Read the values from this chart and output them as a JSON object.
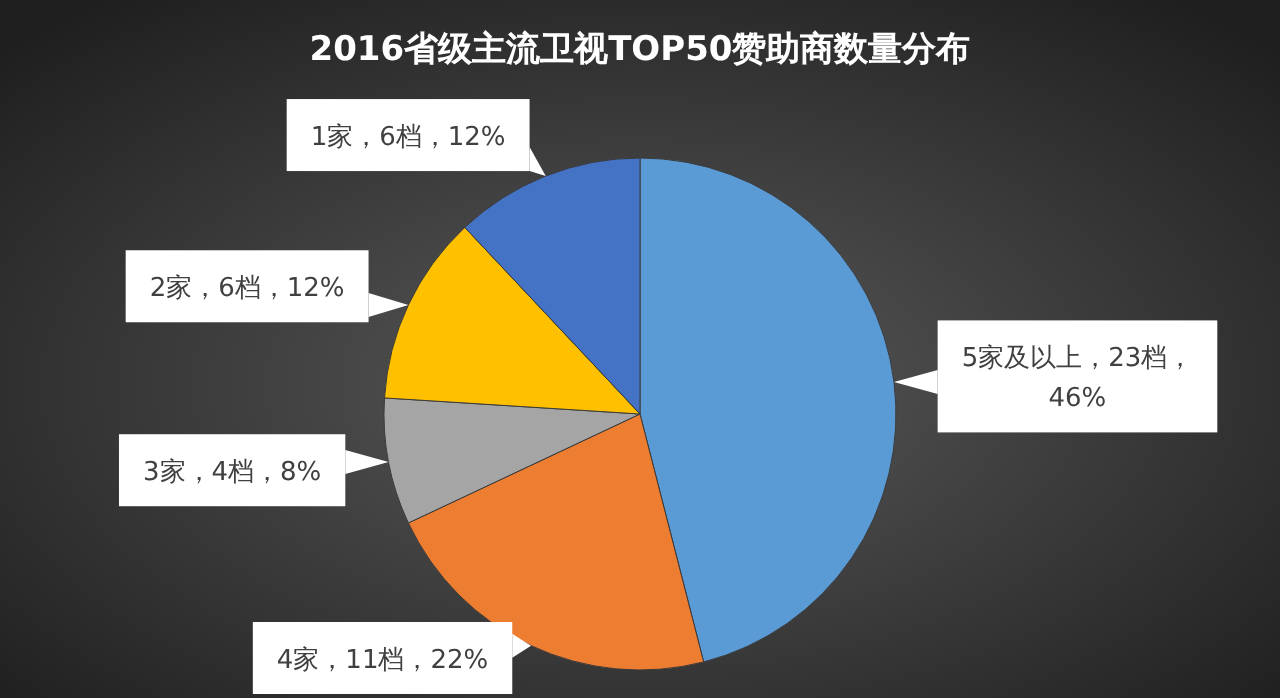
{
  "chart_data": {
    "type": "pie",
    "title": "2016省级主流卫视TOP50赞助商数量分布",
    "categories": [
      null,
      null,
      null,
      null,
      null
    ],
    "values": [
      46,
      22,
      8,
      12,
      12
    ],
    "colors": [
      "#5b9bd5",
      "#ed7d31",
      "#a5a5a5",
      "#ffc000",
      "#4472c4"
    ],
    "value_labels": [
      "5家及以上，23档，46%",
      "4家，11档，22%",
      "3家，4档，8%",
      "2家，6档，12%",
      "1家，6档，12%"
    ]
  }
}
